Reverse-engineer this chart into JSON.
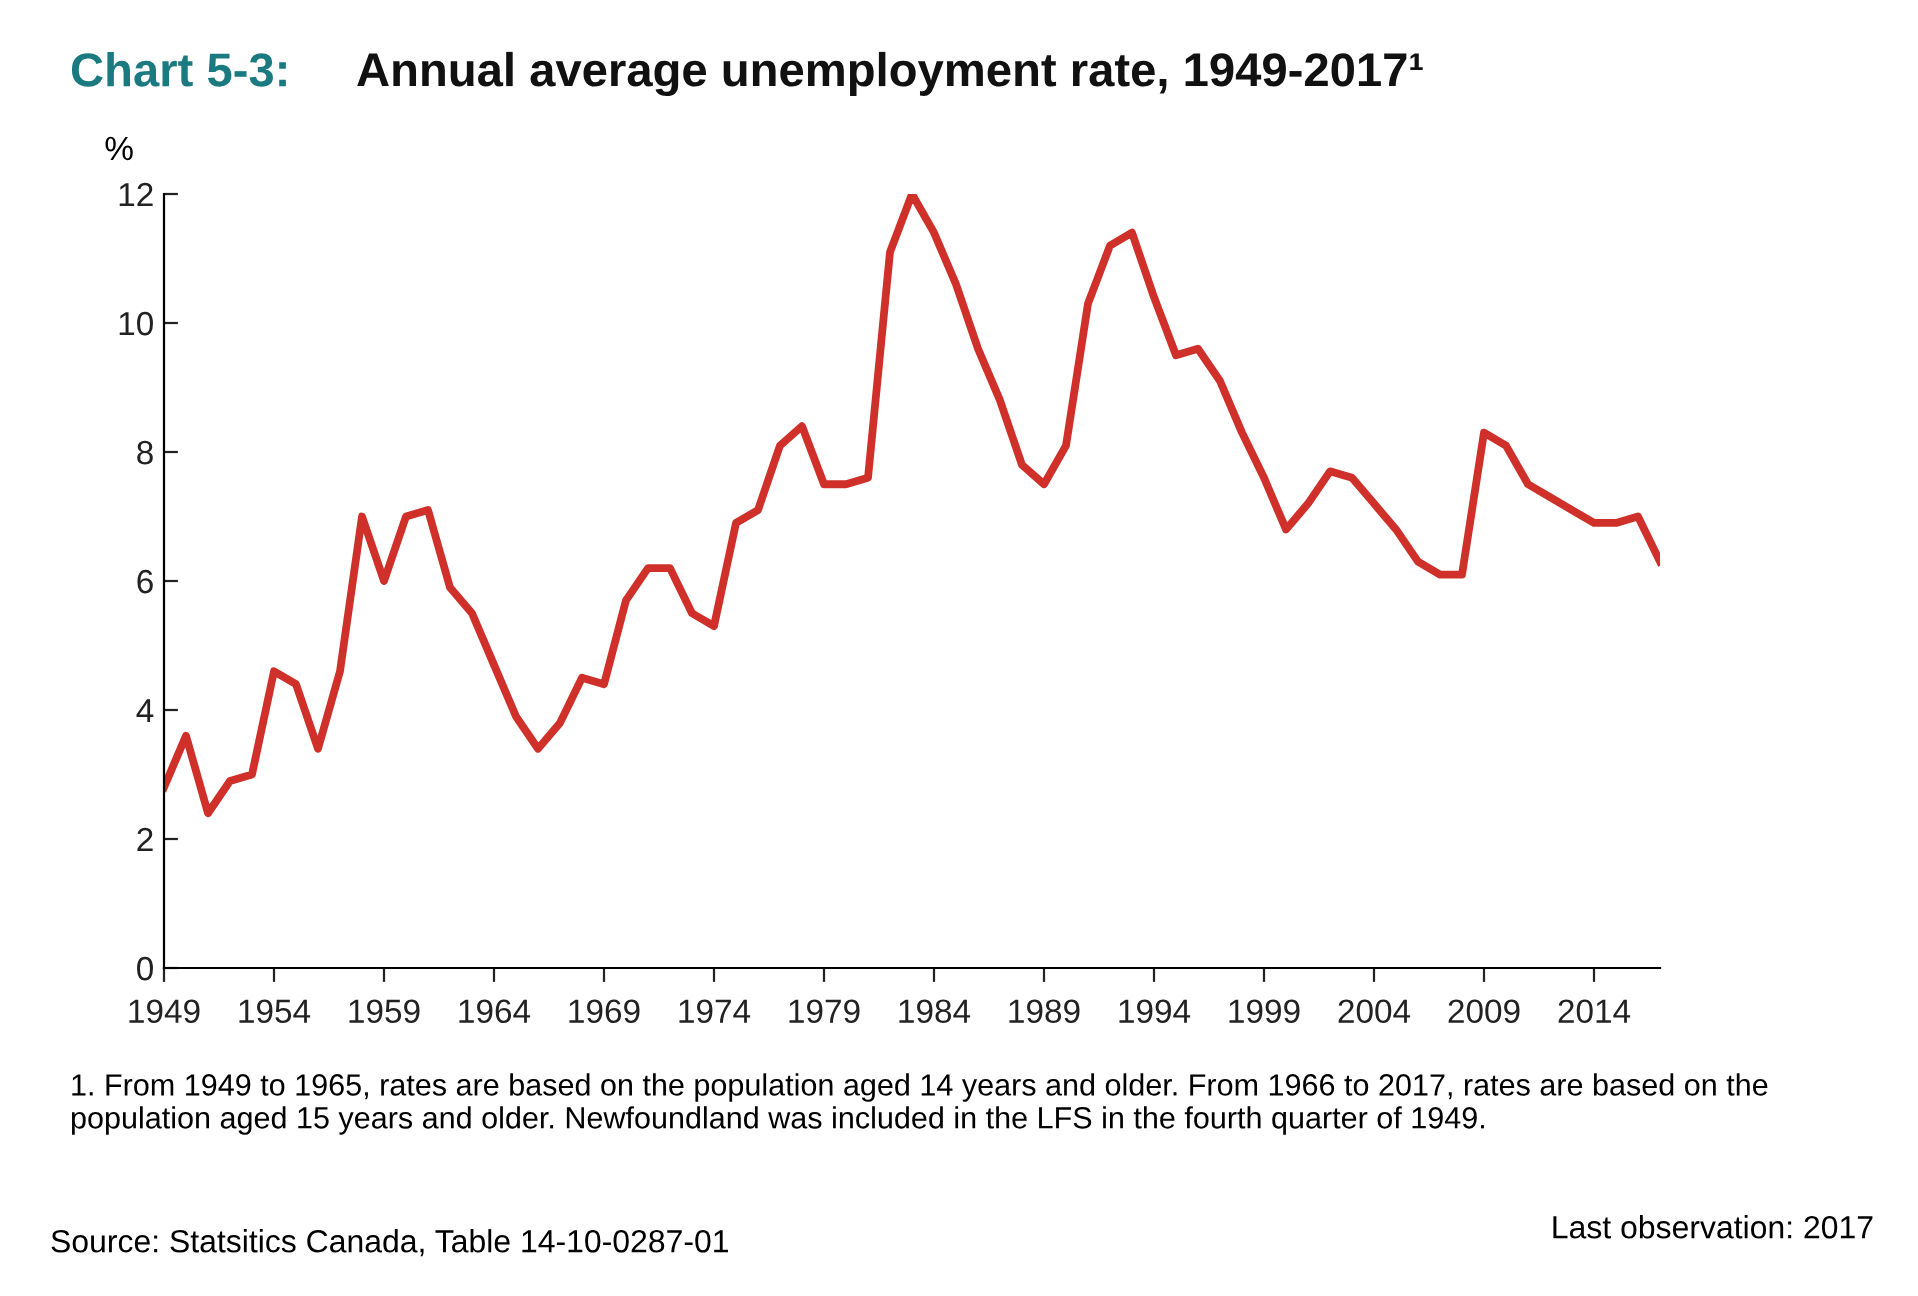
{
  "chart_data": {
    "type": "line",
    "title": "Chart 5-3:",
    "subtitle": "Annual average unemployment rate, 1949-2017¹",
    "ylabel": "%",
    "x": [
      1949,
      1950,
      1951,
      1952,
      1953,
      1954,
      1955,
      1956,
      1957,
      1958,
      1959,
      1960,
      1961,
      1962,
      1963,
      1964,
      1965,
      1966,
      1967,
      1968,
      1969,
      1970,
      1971,
      1972,
      1973,
      1974,
      1975,
      1976,
      1977,
      1978,
      1979,
      1980,
      1981,
      1982,
      1983,
      1984,
      1985,
      1986,
      1987,
      1988,
      1989,
      1990,
      1991,
      1992,
      1993,
      1994,
      1995,
      1996,
      1997,
      1998,
      1999,
      2000,
      2001,
      2002,
      2003,
      2004,
      2005,
      2006,
      2007,
      2008,
      2009,
      2010,
      2011,
      2012,
      2013,
      2014,
      2015,
      2016,
      2017
    ],
    "series": [
      {
        "color": "#d0302a",
        "values": [
          2.8,
          3.6,
          2.4,
          2.9,
          3.0,
          4.6,
          4.4,
          3.4,
          4.6,
          7.0,
          6.0,
          7.0,
          7.1,
          5.9,
          5.5,
          4.7,
          3.9,
          3.4,
          3.8,
          4.5,
          4.4,
          5.7,
          6.2,
          6.2,
          5.5,
          5.3,
          6.9,
          7.1,
          8.1,
          8.4,
          7.5,
          7.5,
          7.6,
          11.1,
          12.0,
          11.4,
          10.6,
          9.6,
          8.8,
          7.8,
          7.5,
          8.1,
          10.3,
          11.2,
          11.4,
          10.4,
          9.5,
          9.6,
          9.1,
          8.3,
          7.6,
          6.8,
          7.2,
          7.7,
          7.6,
          7.2,
          6.8,
          6.3,
          6.1,
          6.1,
          8.3,
          8.1,
          7.5,
          7.3,
          7.1,
          6.9,
          6.9,
          7.0,
          6.3
        ]
      }
    ],
    "xlim": [
      1949,
      2017
    ],
    "xticks": [
      1949,
      1954,
      1959,
      1964,
      1969,
      1974,
      1979,
      1984,
      1989,
      1994,
      1999,
      2004,
      2009,
      2014
    ],
    "ylim": [
      0,
      12
    ],
    "yticks": [
      0,
      2,
      4,
      6,
      8,
      10,
      12
    ],
    "grid": false,
    "legend": false,
    "marker": "none",
    "line_style": "solid",
    "annotations": [
      "1. From 1949 to 1965, rates are based on the population aged 14 years and older. From 1966 to 2017, rates are based on the population aged 15 years and older. Newfoundland was included in the LFS in the fourth quarter of 1949.",
      "Source: Statsitics Canada, Table 14-10-0287-01",
      "Last observation: 2017"
    ]
  }
}
